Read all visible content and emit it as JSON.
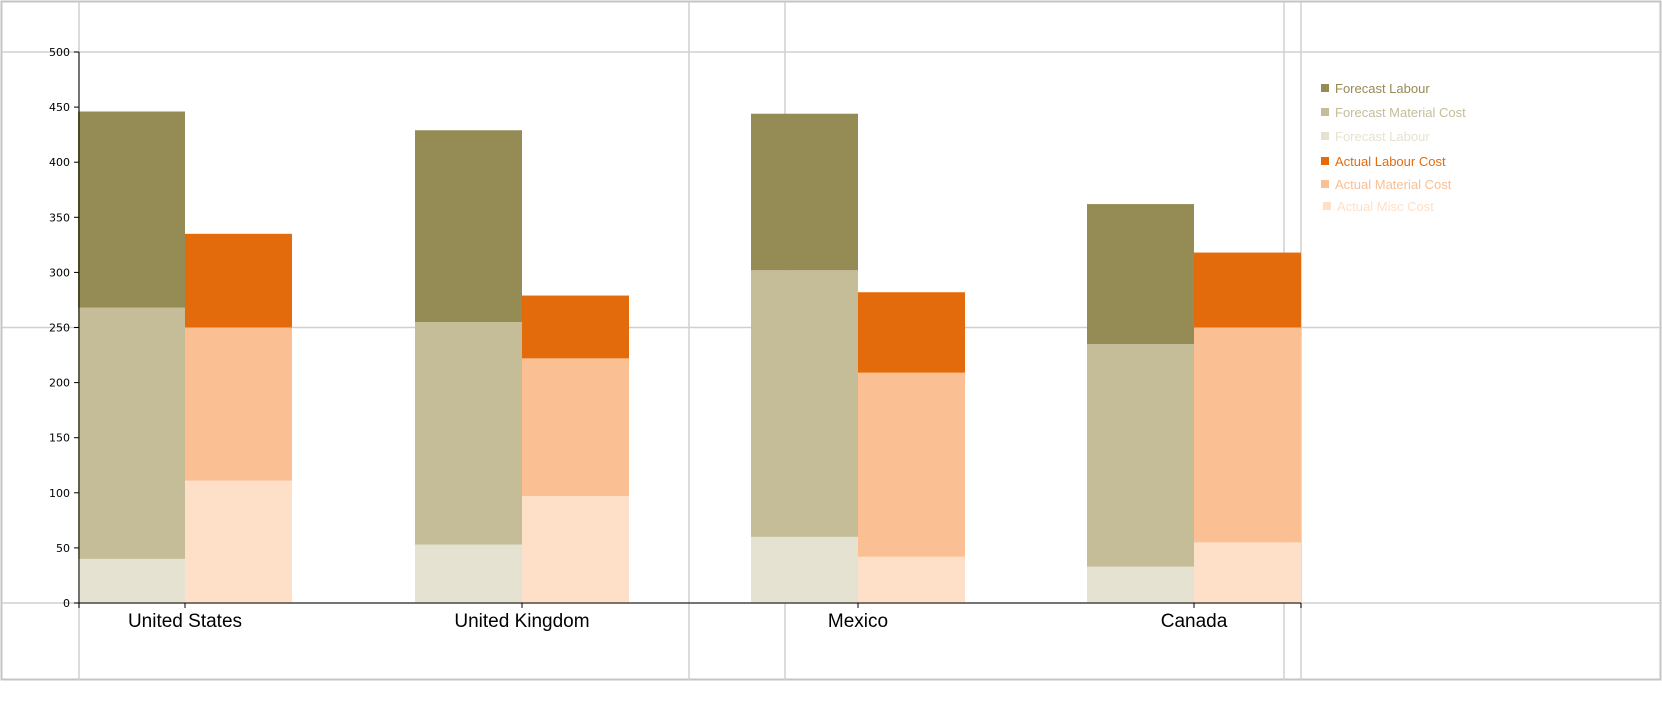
{
  "chart_data": {
    "type": "bar",
    "stacked": true,
    "grouped": true,
    "categories": [
      "United States",
      "United Kingdom",
      "Mexico",
      "Canada"
    ],
    "y_ticks": [
      "0",
      "50",
      "100",
      "150",
      "200",
      "250",
      "300",
      "350",
      "400",
      "450",
      "500"
    ],
    "ylim": [
      0,
      500
    ],
    "groups": [
      {
        "stack": "forecast",
        "series": [
          {
            "name": "Forecast Labour",
            "color": "#e6e2d2",
            "values": [
              40,
              53,
              60,
              33
            ]
          },
          {
            "name": "Forecast Material Cost",
            "color": "#c4bd98",
            "values": [
              228,
              202,
              242,
              202
            ]
          },
          {
            "name": "Forecast Labour",
            "color": "#958b55",
            "values": [
              178,
              174,
              142,
              127
            ]
          }
        ]
      },
      {
        "stack": "actual",
        "series": [
          {
            "name": "Actual Misc Cost",
            "color": "#fee0c8",
            "values": [
              111,
              97,
              42,
              55
            ]
          },
          {
            "name": "Actual Material Cost",
            "color": "#fabf92",
            "values": [
              139,
              125,
              167,
              195
            ]
          },
          {
            "name": "Actual Labour Cost",
            "color": "#e46b0c",
            "values": [
              85,
              57,
              73,
              68
            ]
          }
        ]
      }
    ],
    "legend": {
      "position": "right",
      "items": [
        {
          "label": "Forecast Labour",
          "color": "#958b55"
        },
        {
          "label": "Forecast Material Cost",
          "color": "#c4bd98"
        },
        {
          "label": "Forecast Labour",
          "color": "#e6e2d2"
        },
        {
          "label": "Actual Labour Cost",
          "color": "#e46b0c"
        },
        {
          "label": "Actual Material Cost",
          "color": "#fabf92"
        },
        {
          "label": "Actual Misc Cost",
          "color": "#fee0c8"
        }
      ]
    },
    "grid": true
  }
}
